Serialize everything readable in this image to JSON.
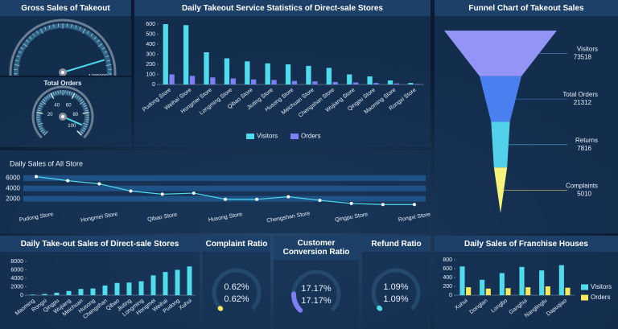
{
  "chart_data": [
    {
      "type": "gauge",
      "title": "Gross Sales of Takeout",
      "value": 1080000,
      "ylim": [
        0,
        1400000
      ],
      "yticks": [
        1200000,
        1400000
      ]
    },
    {
      "type": "gauge",
      "title": "Total Orders",
      "value": 92,
      "ylim": [
        0,
        100
      ],
      "yticks": [
        20,
        40,
        60,
        80,
        100
      ]
    },
    {
      "type": "bar",
      "title": "Daily Takeout Service Statistics of Direct-sale Stores",
      "categories": [
        "Pudong Store",
        "Weihai Store",
        "Hongmei Store",
        "Longming Store",
        "Qibao Store",
        "Jiuting Store",
        "Husong Store",
        "Meichuan Store",
        "Chengshan Store",
        "Wujiang Store",
        "Qingpu Store",
        "Maoming Store",
        "Rongxi Store"
      ],
      "series": [
        {
          "name": "Visitors",
          "color": "#4fdcec",
          "values": [
            600,
            590,
            320,
            260,
            230,
            210,
            200,
            185,
            165,
            100,
            80,
            40,
            15
          ]
        },
        {
          "name": "Orders",
          "color": "#7d7ff2",
          "values": [
            100,
            85,
            70,
            60,
            50,
            45,
            35,
            30,
            25,
            20,
            15,
            10,
            5
          ]
        }
      ],
      "ylim": [
        0,
        600
      ],
      "yticks": [
        0,
        100,
        200,
        300,
        400,
        500,
        600
      ],
      "legend": "bottom"
    },
    {
      "type": "funnel",
      "title": "Funnel Chart of Takeout Sales",
      "categories": [
        "Visitors",
        "Total Orders",
        "Returns",
        "Complaints"
      ],
      "values": [
        73518,
        21312,
        7816,
        5010
      ],
      "colors": [
        "#9394f6",
        "#4a7ff0",
        "#52d2ea",
        "#f6f27c"
      ]
    },
    {
      "type": "line",
      "title": "Daily Sales of All Store",
      "categories": [
        "Pudong Store",
        null,
        "Hongmei Store",
        null,
        "Qibao Store",
        null,
        "Husong Store",
        null,
        "Chengshan Store",
        null,
        "Qingpu Store",
        null,
        "Rongxi Store"
      ],
      "values": [
        6300,
        5500,
        4900,
        3500,
        2900,
        3100,
        1900,
        1900,
        2400,
        1700,
        1100,
        900,
        900
      ],
      "color": "#4fdcec",
      "ylim": [
        0,
        7000
      ],
      "yticks": [
        2000,
        4000,
        6000
      ],
      "grid": true
    },
    {
      "type": "bar",
      "title": "Daily Take-out Sales of Direct-sale Stores",
      "categories": [
        "Maoming",
        "Rongxi",
        "Qingpu",
        "Wujiang",
        "Meichuan",
        "Husong",
        "Chengshan",
        "Qibao",
        "Jiuting",
        "Longming",
        "Hongmei",
        "Weihai",
        "Pudong",
        "Xuhui"
      ],
      "values": [
        150,
        300,
        600,
        1000,
        1500,
        1600,
        2300,
        2900,
        3000,
        3300,
        4700,
        5500,
        6000,
        6800
      ],
      "color": "#4fdcec",
      "ylim": [
        0,
        8000
      ],
      "yticks": [
        0,
        2000,
        4000,
        6000,
        8000
      ]
    },
    {
      "type": "ring",
      "title": "Complaint Ratio",
      "values": [
        0.62
      ],
      "value_labels": [
        "0.62%"
      ],
      "ylim": [
        0,
        100
      ],
      "color": "#f6ea5c"
    },
    {
      "type": "ring",
      "title": "Customer Conversion Ratio",
      "values": [
        17.17
      ],
      "value_labels": [
        "17.17%"
      ],
      "ylim": [
        0,
        100
      ],
      "color": "#7d7ff2"
    },
    {
      "type": "ring",
      "title": "Refund Ratio",
      "values": [
        1.09
      ],
      "value_labels": [
        "1.09%"
      ],
      "ylim": [
        0,
        100
      ],
      "color": "#4fdcec"
    },
    {
      "type": "bar",
      "title": "Daily Sales of Franchise Houses",
      "categories": [
        "Xuhui",
        "Donglan",
        "Longbo",
        "Ganghui",
        "Nanglinglu",
        "Dapuqiao"
      ],
      "series": [
        {
          "name": "Visitors",
          "color": "#4fdcec",
          "values": [
            650,
            350,
            500,
            640,
            560,
            680
          ]
        },
        {
          "name": "Orders",
          "color": "#f6ea5c",
          "values": [
            180,
            150,
            160,
            180,
            200,
            170
          ]
        }
      ],
      "ylim": [
        0,
        800
      ],
      "yticks": [
        0,
        200,
        400,
        600,
        800
      ],
      "legend": "right"
    }
  ]
}
